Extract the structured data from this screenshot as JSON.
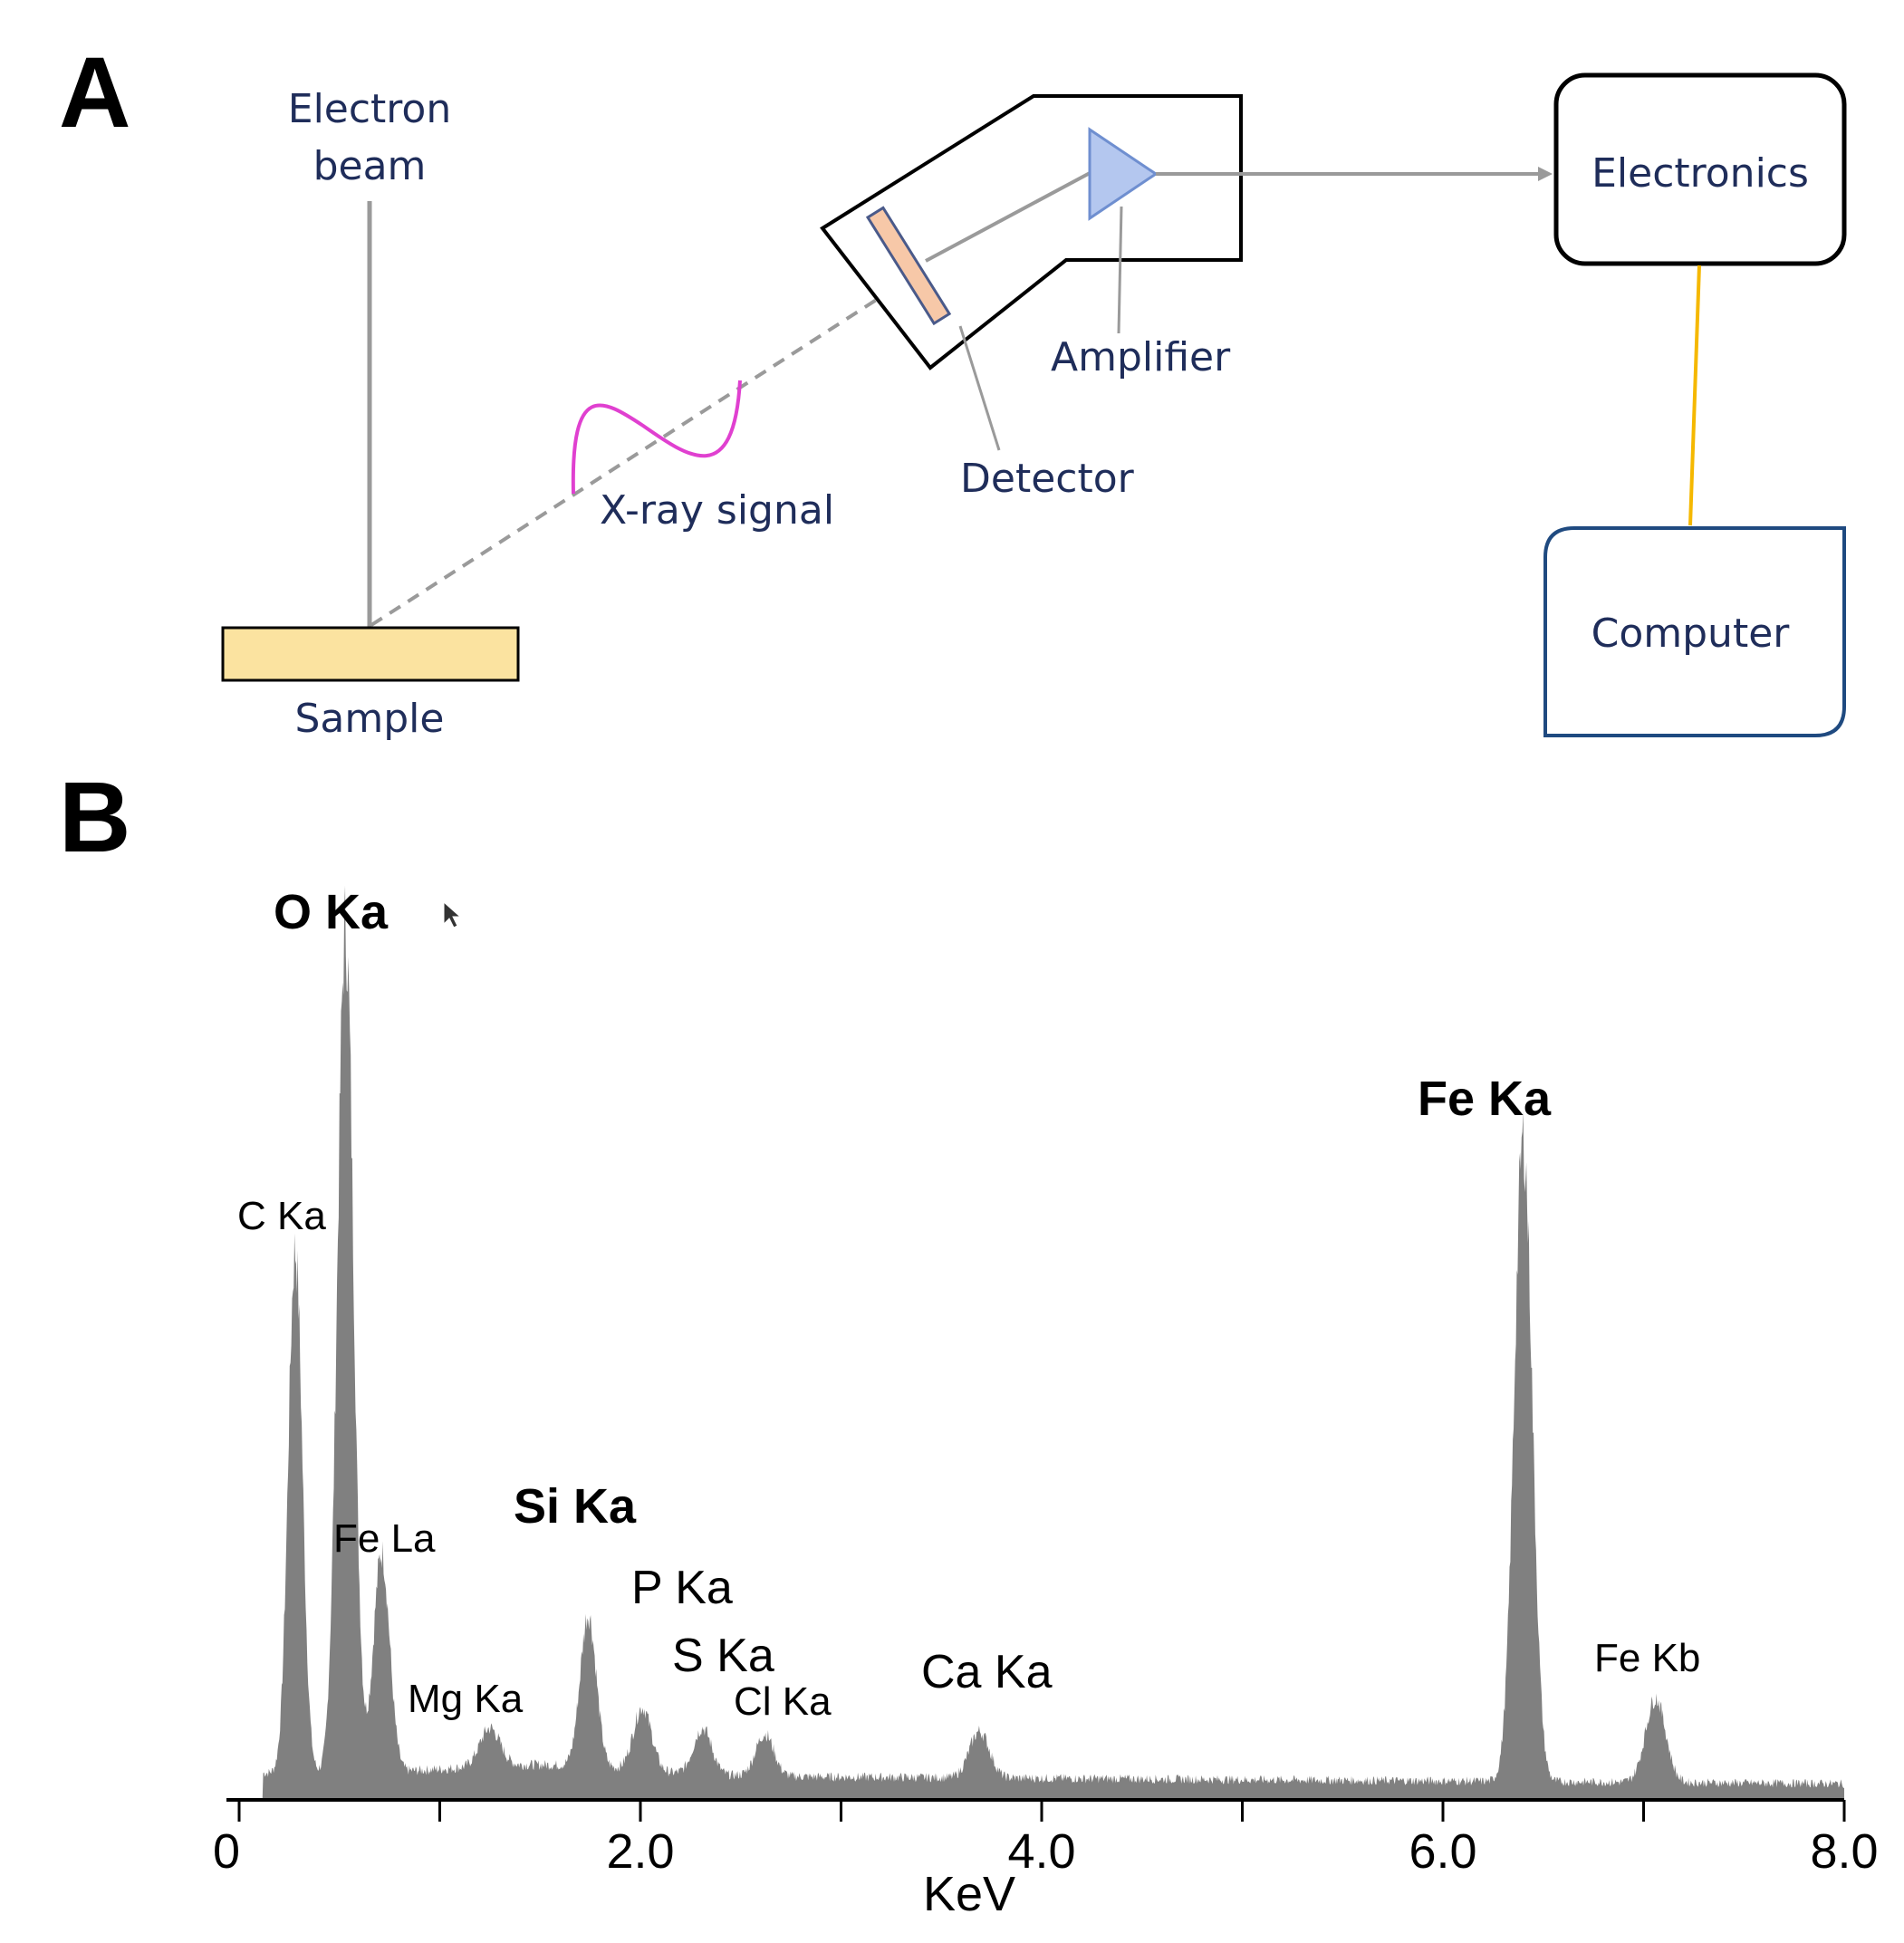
{
  "panel_a": {
    "letter": "A",
    "labels": {
      "electron_beam_line1": "Electron",
      "electron_beam_line2": "beam",
      "sample": "Sample",
      "xray_signal": "X-ray signal",
      "detector": "Detector",
      "amplifier": "Amplifier",
      "electronics": "Electronics",
      "computer": "Computer"
    },
    "colors": {
      "label_text": "#1f2d5a",
      "sample_fill": "#fbe3a0",
      "detector_fill": "#f7c8a8",
      "amplifier_fill": "#b4c7ef",
      "xray_wave": "#e040d0",
      "connector_gold": "#f5b800",
      "computer_border": "#1f4a80"
    }
  },
  "panel_b": {
    "letter": "B",
    "chart_data": {
      "type": "area",
      "title": "",
      "xlabel": "KeV",
      "ylabel": "",
      "xlim": [
        0,
        8.0
      ],
      "ylim": [
        0,
        100
      ],
      "grid": false,
      "x_tick_labels": [
        {
          "value": 0,
          "label": "0"
        },
        {
          "value": 2.0,
          "label": "2.0"
        },
        {
          "value": 4.0,
          "label": "4.0"
        },
        {
          "value": 6.0,
          "label": "6.0"
        },
        {
          "value": 8.0,
          "label": "8.0"
        }
      ],
      "minor_ticks": [
        1.0,
        3.0,
        5.0,
        7.0
      ],
      "fill_color": "#808080",
      "background_level": 2,
      "peaks": [
        {
          "label": "C Ka",
          "energy": 0.28,
          "height": 62,
          "width": 0.035,
          "style": "small"
        },
        {
          "label": "O Ka",
          "energy": 0.53,
          "height": 100,
          "width": 0.04,
          "style": "big"
        },
        {
          "label": "Fe La",
          "energy": 0.71,
          "height": 26,
          "width": 0.04,
          "style": "small"
        },
        {
          "label": "Mg Ka",
          "energy": 1.25,
          "height": 4.5,
          "width": 0.05,
          "style": "small"
        },
        {
          "label": "Si Ka",
          "energy": 1.74,
          "height": 18,
          "width": 0.04,
          "style": "big"
        },
        {
          "label": "P Ka",
          "energy": 2.01,
          "height": 7.5,
          "width": 0.045,
          "style": "med"
        },
        {
          "label": "S Ka",
          "energy": 2.31,
          "height": 5.5,
          "width": 0.045,
          "style": "med"
        },
        {
          "label": "Cl Ka",
          "energy": 2.62,
          "height": 5,
          "width": 0.045,
          "style": "small"
        },
        {
          "label": "Ca Ka",
          "energy": 3.69,
          "height": 5.5,
          "width": 0.05,
          "style": "med"
        },
        {
          "label": "Fe Ka",
          "energy": 6.4,
          "height": 76,
          "width": 0.045,
          "style": "big"
        },
        {
          "label": "Fe Kb",
          "energy": 7.06,
          "height": 10,
          "width": 0.05,
          "style": "small"
        }
      ]
    }
  }
}
